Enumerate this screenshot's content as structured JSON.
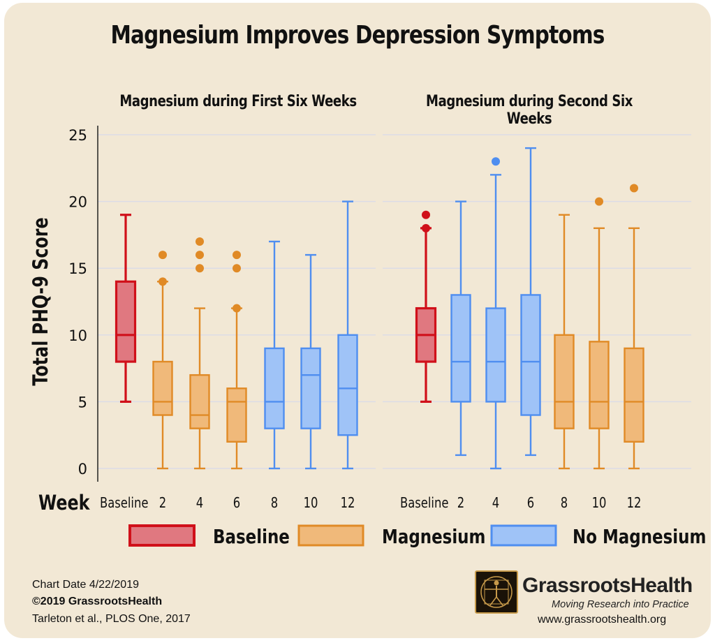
{
  "title": "Magnesium Improves Depression Symptoms",
  "colors": {
    "baseline": "#d0101a",
    "baseline_fill": "#e07880",
    "magnesium": "#e08a26",
    "magnesium_fill": "#f0b97a",
    "no_magnesium": "#4f8ef0",
    "no_magnesium_fill": "#9fc3f7",
    "grid": "#dcdce6",
    "background": "#f2e8d5"
  },
  "legend": {
    "baseline": "Baseline",
    "magnesium": "Magnesium",
    "no_magnesium": "No Magnesium"
  },
  "footer": {
    "chart_date": "Chart Date 4/22/2019",
    "copyright": "©2019 GrassrootsHealth",
    "citation": "Tarleton et al., PLOS One, 2017",
    "brand": "GrassrootsHealth",
    "tagline": "Moving Research into Practice",
    "website": "www.grassrootshealth.org"
  },
  "chart_data": [
    {
      "type": "box",
      "title": "Magnesium during First Six Weeks",
      "xlabel": "Week",
      "ylabel": "Total PHQ-9 Score",
      "ylim": [
        0,
        25
      ],
      "yticks": [
        0,
        5,
        10,
        15,
        20,
        25
      ],
      "grid": true,
      "categories": [
        "Baseline",
        "2",
        "4",
        "6",
        "8",
        "10",
        "12"
      ],
      "boxes": [
        {
          "category": "Baseline",
          "group": "baseline",
          "min": 5,
          "q1": 8,
          "median": 10,
          "q3": 14,
          "max": 19,
          "outliers": []
        },
        {
          "category": "2",
          "group": "magnesium",
          "min": 0,
          "q1": 4,
          "median": 5,
          "q3": 8,
          "max": 14,
          "outliers": [
            14,
            16
          ]
        },
        {
          "category": "4",
          "group": "magnesium",
          "min": 0,
          "q1": 3,
          "median": 4,
          "q3": 7,
          "max": 12,
          "outliers": [
            15,
            16,
            17
          ]
        },
        {
          "category": "6",
          "group": "magnesium",
          "min": 0,
          "q1": 2,
          "median": 5,
          "q3": 6,
          "max": 12,
          "outliers": [
            12,
            15,
            16
          ]
        },
        {
          "category": "8",
          "group": "no_magnesium",
          "min": 0,
          "q1": 3,
          "median": 5,
          "q3": 9,
          "max": 17,
          "outliers": []
        },
        {
          "category": "10",
          "group": "no_magnesium",
          "min": 0,
          "q1": 3,
          "median": 7,
          "q3": 9,
          "max": 16,
          "outliers": []
        },
        {
          "category": "12",
          "group": "no_magnesium",
          "min": 0,
          "q1": 2.5,
          "median": 6,
          "q3": 10,
          "max": 20,
          "outliers": []
        }
      ]
    },
    {
      "type": "box",
      "title": "Magnesium during Second Six Weeks",
      "xlabel": "Week",
      "ylabel": "Total PHQ-9 Score",
      "ylim": [
        0,
        25
      ],
      "yticks": [
        0,
        5,
        10,
        15,
        20,
        25
      ],
      "grid": true,
      "categories": [
        "Baseline",
        "2",
        "4",
        "6",
        "8",
        "10",
        "12"
      ],
      "boxes": [
        {
          "category": "Baseline",
          "group": "baseline",
          "min": 5,
          "q1": 8,
          "median": 10,
          "q3": 12,
          "max": 18,
          "outliers": [
            18,
            19
          ]
        },
        {
          "category": "2",
          "group": "no_magnesium",
          "min": 1,
          "q1": 5,
          "median": 8,
          "q3": 13,
          "max": 20,
          "outliers": []
        },
        {
          "category": "4",
          "group": "no_magnesium",
          "min": 0,
          "q1": 5,
          "median": 8,
          "q3": 12,
          "max": 22,
          "outliers": [
            23
          ]
        },
        {
          "category": "6",
          "group": "no_magnesium",
          "min": 1,
          "q1": 4,
          "median": 8,
          "q3": 13,
          "max": 24,
          "outliers": []
        },
        {
          "category": "8",
          "group": "magnesium",
          "min": 0,
          "q1": 3,
          "median": 5,
          "q3": 10,
          "max": 19,
          "outliers": []
        },
        {
          "category": "10",
          "group": "magnesium",
          "min": 0,
          "q1": 3,
          "median": 5,
          "q3": 9.5,
          "max": 18,
          "outliers": [
            20
          ]
        },
        {
          "category": "12",
          "group": "magnesium",
          "min": 0,
          "q1": 2,
          "median": 5,
          "q3": 9,
          "max": 18,
          "outliers": [
            21
          ]
        }
      ]
    }
  ]
}
